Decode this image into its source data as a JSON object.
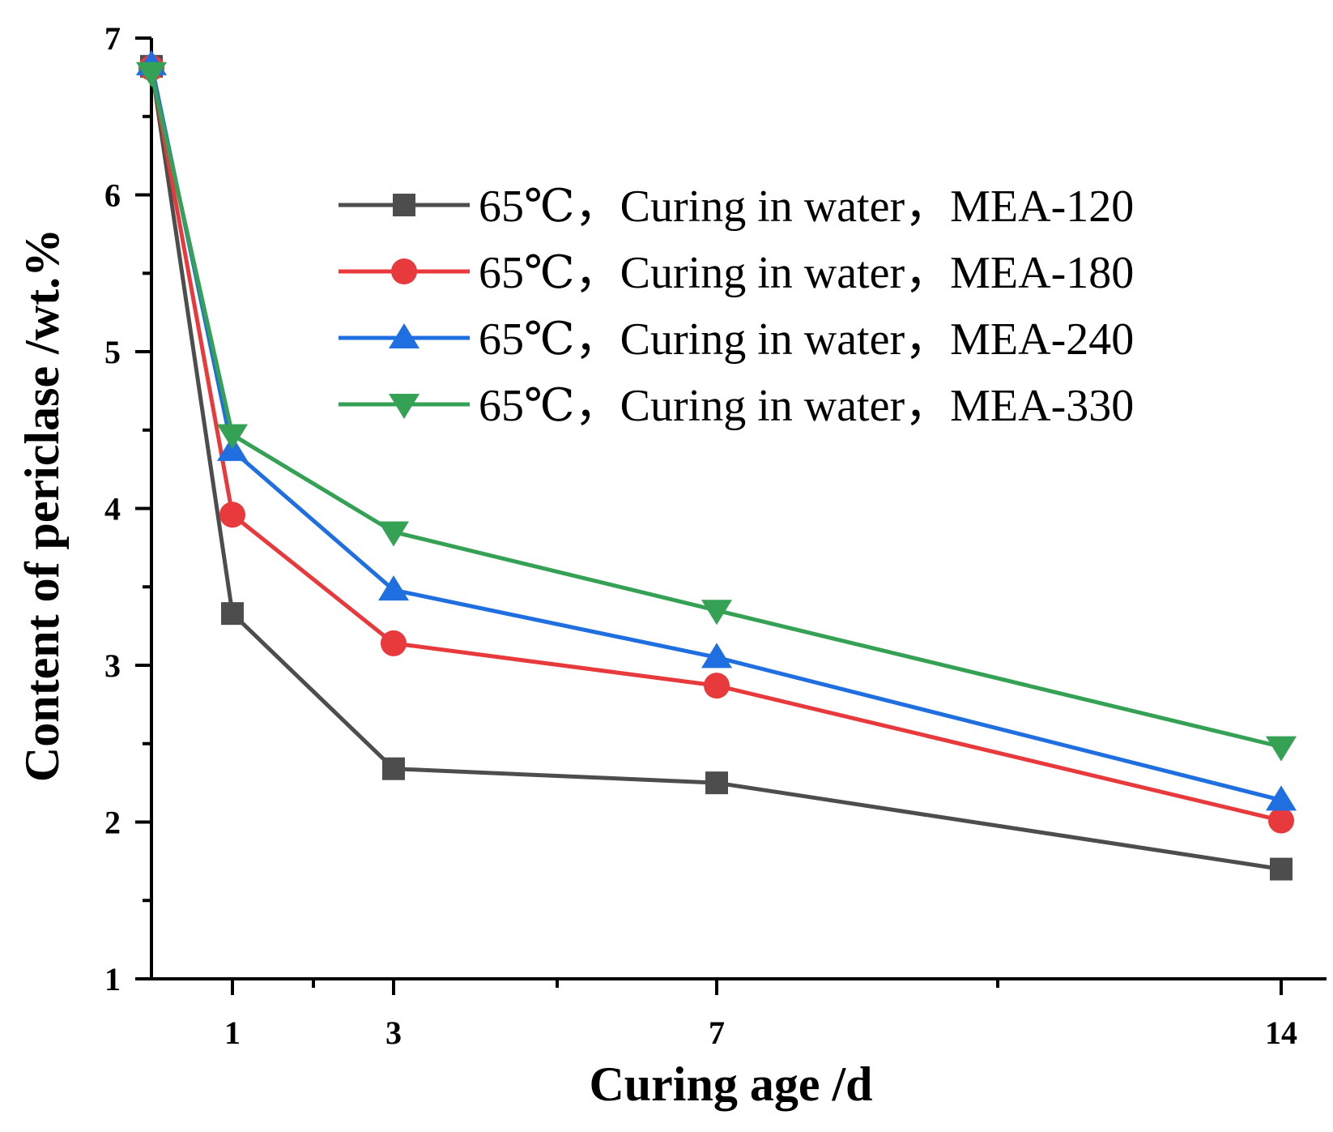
{
  "chart_data": {
    "type": "line",
    "title": "",
    "xlabel": "Curing age /d",
    "ylabel": "Content of periclase /wt.%",
    "xlim": [
      0,
      14.5
    ],
    "ylim": [
      1,
      7
    ],
    "x_ticks": [
      1,
      3,
      7,
      14
    ],
    "x_ticks_display": [
      "1",
      "3",
      "7",
      "14"
    ],
    "x_minor_ticks": [
      2,
      5,
      10.5
    ],
    "y_ticks": [
      1,
      2,
      3,
      4,
      5,
      6,
      7
    ],
    "y_ticks_display": [
      "1",
      "2",
      "3",
      "4",
      "5",
      "6",
      "7"
    ],
    "y_minor_ticks": [
      1.5,
      2.5,
      3.5,
      4.5,
      5.5,
      6.5
    ],
    "legend_position": "top-right",
    "grid": false,
    "x": [
      0,
      1,
      3,
      7,
      14
    ],
    "series": [
      {
        "name": "65℃，Curing in water，MEA-120",
        "marker": "square",
        "color": "#4d4d4d",
        "values": [
          6.82,
          3.33,
          2.34,
          2.25,
          1.7
        ]
      },
      {
        "name": "65℃，Curing in water，MEA-180",
        "marker": "circle",
        "color": "#e8393c",
        "values": [
          6.81,
          3.96,
          3.14,
          2.87,
          2.01
        ]
      },
      {
        "name": "65℃，Curing in water，MEA-240",
        "marker": "triangle-up",
        "color": "#1f6fe0",
        "values": [
          6.83,
          4.37,
          3.48,
          3.05,
          2.14
        ]
      },
      {
        "name": "65℃，Curing in water，MEA-330",
        "marker": "triangle-down",
        "color": "#35a155",
        "values": [
          6.78,
          4.47,
          3.85,
          3.35,
          2.48
        ]
      }
    ]
  }
}
